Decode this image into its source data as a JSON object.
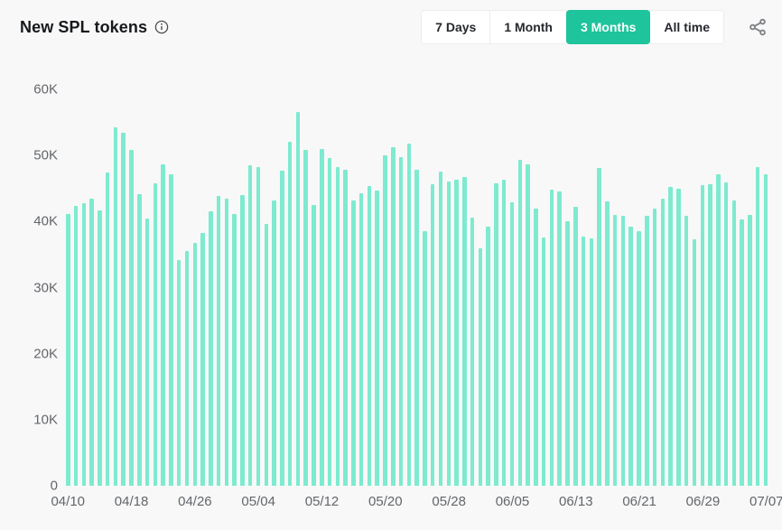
{
  "header": {
    "title": "New SPL tokens",
    "info_icon": "info-circle-icon",
    "share_icon": "share-icon",
    "time_filters": [
      {
        "label": "7 Days",
        "active": false
      },
      {
        "label": "1 Month",
        "active": false
      },
      {
        "label": "3 Months",
        "active": true
      },
      {
        "label": "All time",
        "active": false
      }
    ]
  },
  "colors": {
    "accent_green": "#1ec49c",
    "bar_mint": "#7eead0",
    "background": "#f8f8f8",
    "axis_text": "#63666b",
    "title_text": "#16181b"
  },
  "chart_data": {
    "type": "bar",
    "title": "New SPL tokens",
    "xlabel": "",
    "ylabel": "",
    "values_unit": "thousands of tokens (K)",
    "ylim": [
      0,
      60
    ],
    "grid": false,
    "legend": false,
    "y_ticks": [
      0,
      10,
      20,
      30,
      40,
      50,
      60
    ],
    "y_tick_labels": [
      "0",
      "10K",
      "20K",
      "30K",
      "40K",
      "50K",
      "60K"
    ],
    "x_tick_labels": [
      "04/10",
      "04/18",
      "04/26",
      "05/04",
      "05/12",
      "05/20",
      "05/28",
      "06/05",
      "06/13",
      "06/21",
      "06/29",
      "07/07"
    ],
    "x_tick_indices": [
      0,
      8,
      16,
      24,
      32,
      40,
      48,
      56,
      64,
      72,
      80,
      88
    ],
    "x": [
      "04/10",
      "04/11",
      "04/12",
      "04/13",
      "04/14",
      "04/15",
      "04/16",
      "04/17",
      "04/18",
      "04/19",
      "04/20",
      "04/21",
      "04/22",
      "04/23",
      "04/24",
      "04/25",
      "04/26",
      "04/27",
      "04/28",
      "04/29",
      "04/30",
      "05/01",
      "05/02",
      "05/03",
      "05/04",
      "05/05",
      "05/06",
      "05/07",
      "05/08",
      "05/09",
      "05/10",
      "05/11",
      "05/12",
      "05/13",
      "05/14",
      "05/15",
      "05/16",
      "05/17",
      "05/18",
      "05/19",
      "05/20",
      "05/21",
      "05/22",
      "05/23",
      "05/24",
      "05/25",
      "05/26",
      "05/27",
      "05/28",
      "05/29",
      "05/30",
      "05/31",
      "06/01",
      "06/02",
      "06/03",
      "06/04",
      "06/05",
      "06/06",
      "06/07",
      "06/08",
      "06/09",
      "06/10",
      "06/11",
      "06/12",
      "06/13",
      "06/14",
      "06/15",
      "06/16",
      "06/17",
      "06/18",
      "06/19",
      "06/20",
      "06/21",
      "06/22",
      "06/23",
      "06/24",
      "06/25",
      "06/26",
      "06/27",
      "06/28",
      "06/29",
      "06/30",
      "07/01",
      "07/02",
      "07/03",
      "07/04",
      "07/05",
      "07/06",
      "07/07"
    ],
    "values": [
      41.2,
      42.4,
      42.8,
      43.5,
      41.7,
      47.4,
      54.2,
      53.4,
      50.9,
      44.2,
      40.4,
      45.8,
      48.7,
      47.2,
      34.2,
      35.6,
      36.8,
      38.3,
      41.5,
      43.9,
      43.4,
      41.2,
      44.0,
      48.5,
      48.3,
      39.7,
      43.2,
      47.7,
      52.1,
      56.6,
      50.8,
      42.5,
      51.0,
      49.6,
      48.2,
      47.8,
      43.2,
      44.3,
      45.4,
      44.7,
      50.0,
      51.2,
      49.8,
      51.8,
      47.8,
      38.6,
      45.6,
      47.5,
      46.1,
      46.3,
      46.7,
      40.6,
      36.0,
      39.2,
      45.8,
      46.3,
      42.9,
      49.4,
      48.7,
      42.0,
      37.6,
      44.8,
      44.6,
      40.0,
      42.2,
      37.7,
      37.5,
      48.1,
      43.1,
      41.0,
      40.8,
      39.2,
      38.5,
      40.8,
      42.0,
      43.4,
      45.3,
      44.9,
      40.8,
      37.3,
      45.5,
      45.7,
      47.2,
      45.9,
      43.2,
      40.3,
      41.0,
      48.3,
      47.2
    ]
  }
}
